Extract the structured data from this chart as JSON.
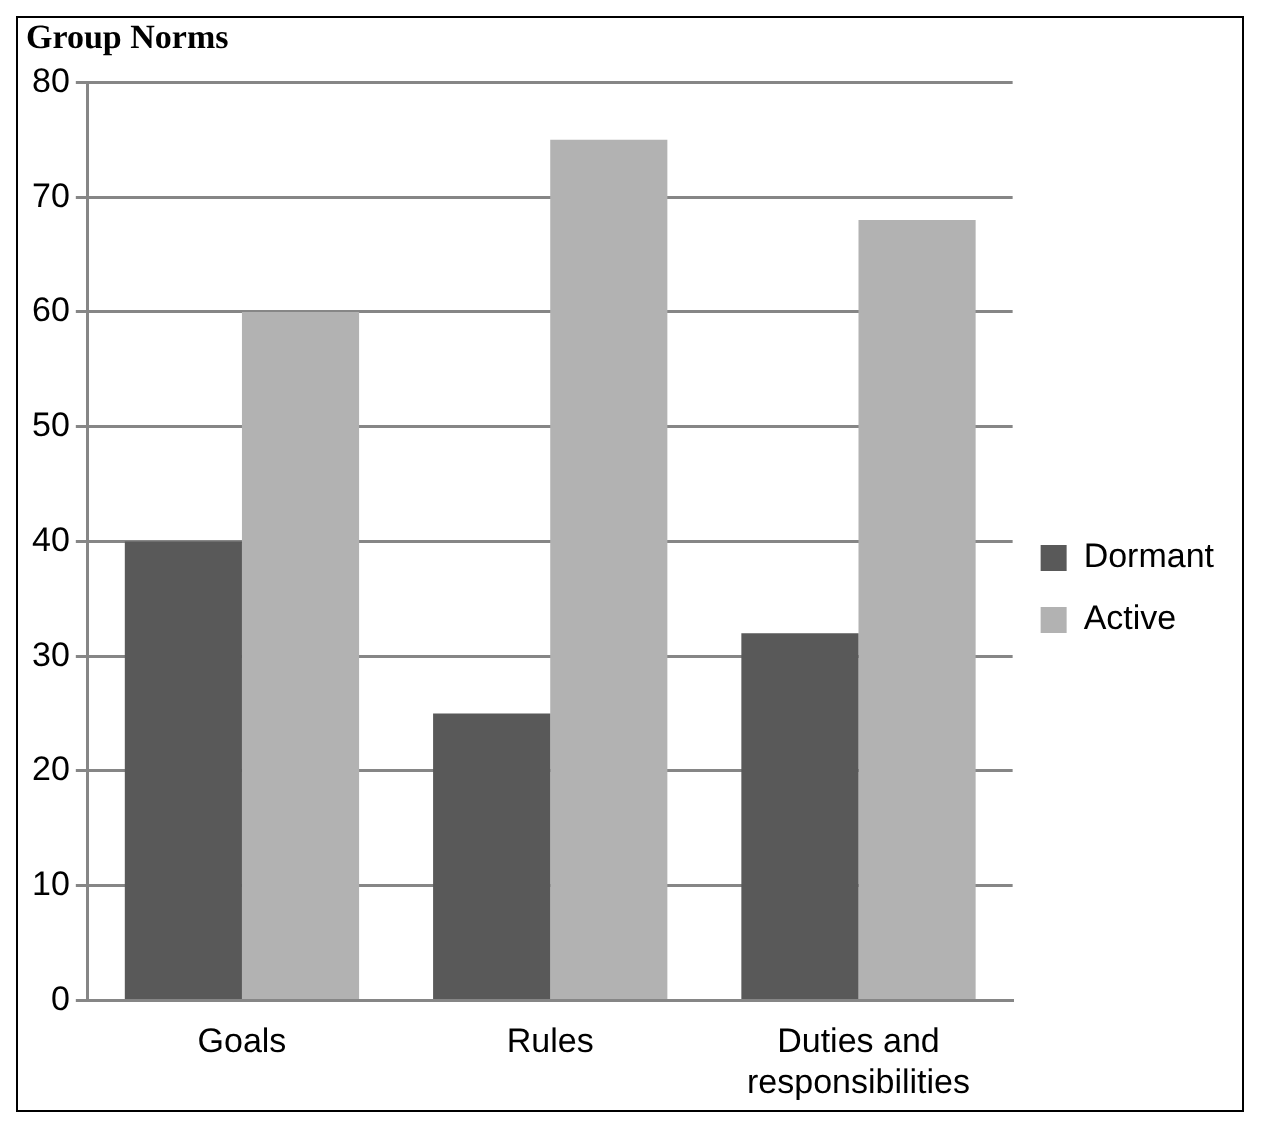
{
  "chart_data": {
    "type": "bar",
    "title": "Group Norms",
    "categories": [
      "Goals",
      "Rules",
      "Duties and responsibilities"
    ],
    "series": [
      {
        "name": "Dormant",
        "color": "#595959",
        "values": [
          40,
          25,
          32
        ]
      },
      {
        "name": "Active",
        "color": "#b2b2b2",
        "values": [
          60,
          75,
          68
        ]
      }
    ],
    "ylim": [
      0,
      80
    ],
    "yticks": [
      0,
      10,
      20,
      30,
      40,
      50,
      60,
      70,
      80
    ],
    "grid": "y",
    "legend": "right"
  }
}
